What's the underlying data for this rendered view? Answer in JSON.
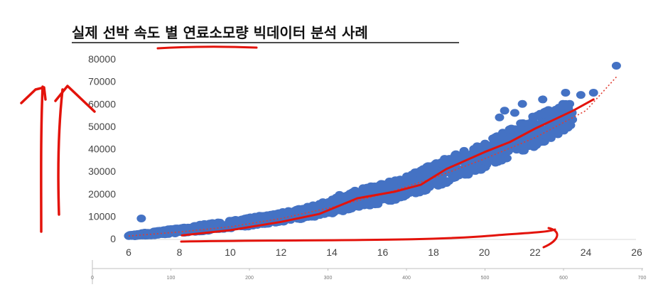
{
  "title": "실제 선박 속도 별 연료소모량 빅데이터 분석 사례",
  "colors": {
    "points": "#4472c4",
    "trendline": "#e03c31",
    "annotation": "#e3130b",
    "axis": "#d9d9d9",
    "title": "#111111"
  },
  "chart_data": {
    "type": "scatter",
    "title": "실제 선박 속도 별 연료소모량 빅데이터 분석 사례",
    "xlabel": "",
    "ylabel": "",
    "xlim": [
      6,
      26
    ],
    "ylim": [
      0,
      80000
    ],
    "x_ticks": [
      "6",
      "8",
      "10",
      "12",
      "14",
      "16",
      "18",
      "20",
      "22",
      "24",
      "26"
    ],
    "y_ticks": [
      "0",
      "10000",
      "20000",
      "30000",
      "40000",
      "50000",
      "60000",
      "70000",
      "80000"
    ],
    "grid": false,
    "series": [
      {
        "band": [
          [
            6,
            1000,
            1600
          ],
          [
            7,
            1500,
            3400
          ],
          [
            8,
            2500,
            4800
          ],
          [
            9,
            3400,
            6600
          ],
          [
            10,
            4600,
            8200
          ],
          [
            11,
            5800,
            9900
          ],
          [
            12,
            7400,
            11800
          ],
          [
            13,
            9000,
            14200
          ],
          [
            14,
            11200,
            17600
          ],
          [
            15,
            13400,
            21800
          ],
          [
            16,
            15800,
            24800
          ],
          [
            17,
            18800,
            28000
          ],
          [
            18,
            22600,
            33600
          ],
          [
            19,
            26600,
            38400
          ],
          [
            20,
            31000,
            42600
          ],
          [
            21,
            36000,
            49000
          ],
          [
            22,
            41000,
            55000
          ],
          [
            23,
            47000,
            60000
          ],
          [
            23.5,
            51000,
            61000
          ]
        ],
        "outliers": [
          [
            6.5,
            9000
          ],
          [
            11.2,
            10000
          ],
          [
            12.1,
            10500
          ],
          [
            12.3,
            12000
          ],
          [
            12.8,
            12500
          ],
          [
            13.5,
            14000
          ],
          [
            14.2,
            18000
          ],
          [
            14.3,
            19500
          ],
          [
            15.5,
            21500
          ],
          [
            15.9,
            24000
          ],
          [
            16.5,
            26000
          ],
          [
            17.6,
            31000
          ],
          [
            18.3,
            34000
          ],
          [
            20.6,
            54000
          ],
          [
            20.8,
            57000
          ],
          [
            21.2,
            56000
          ],
          [
            21.5,
            60000
          ],
          [
            22.3,
            62000
          ],
          [
            23.2,
            65000
          ],
          [
            23.8,
            64000
          ],
          [
            24.3,
            65000
          ],
          [
            25.2,
            77000
          ]
        ]
      }
    ],
    "trendline": {
      "x": [
        6,
        8,
        10,
        12,
        14,
        16,
        18,
        20,
        22,
        24,
        25.2
      ],
      "y": [
        1200,
        3000,
        5300,
        9000,
        14000,
        19800,
        27000,
        35500,
        45000,
        57000,
        72000
      ]
    },
    "annotation_path": {
      "x": [
        8.1,
        10,
        12,
        13.5,
        15,
        16.5,
        17.5,
        18.5,
        20,
        21,
        22,
        23.5,
        24.3
      ],
      "y": [
        1500,
        3800,
        7500,
        11000,
        18000,
        21000,
        24000,
        31000,
        38500,
        43000,
        49000,
        57000,
        62000
      ]
    },
    "secondary_axis": {
      "ticks": [
        "0",
        "100",
        "200",
        "300",
        "400",
        "500",
        "600",
        "700"
      ]
    }
  }
}
